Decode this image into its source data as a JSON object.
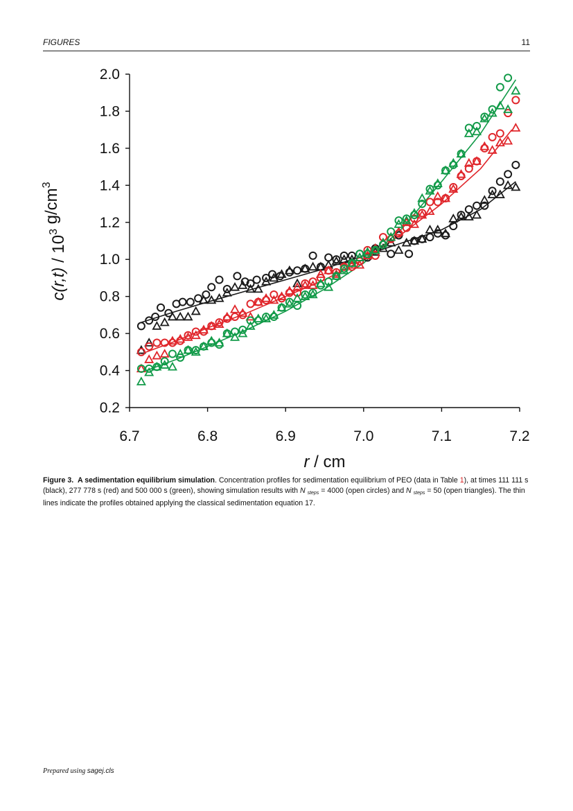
{
  "header": {
    "section": "FIGURES",
    "page": "11"
  },
  "footer": {
    "prefix": "Prepared using",
    "cls": "sagej.cls"
  },
  "caption": {
    "label": "Figure 3.",
    "title": "A sedimentation equilibrium simulation",
    "part1": ". Concentration profiles for sedimentation equilibrium of PEO (data in Table ",
    "table_ref": "1",
    "part2": "), at times 111 111 s (black), 277 778 s (red) and 500 000 s (green), showing simulation results with ",
    "n1": "N",
    "sub1": "steps",
    "part3": " = 4000 (open circles) and ",
    "n2": "N",
    "sub2": "steps",
    "part4": " = 50 (open triangles). The thin lines indicate the profiles obtained applying the classical sedimentation equation 17."
  },
  "colors": {
    "black": "#1a1a1a",
    "red": "#e0262b",
    "green": "#119a48"
  },
  "chart_data": {
    "type": "scatter",
    "title": "",
    "xlabel": "r / cm",
    "ylabel": "c(r,t) / 10^3 g/cm^3",
    "xlim": [
      6.7,
      7.2
    ],
    "ylim": [
      0.2,
      2.0
    ],
    "xticks": [
      "6.7",
      "6.8",
      "6.9",
      "7.0",
      "7.1",
      "7.2"
    ],
    "yticks": [
      "0.2",
      "0.4",
      "0.6",
      "0.8",
      "1.0",
      "1.2",
      "1.4",
      "1.6",
      "1.8",
      "2.0"
    ],
    "grid": false,
    "series": [
      {
        "color": "black",
        "marker": "circle",
        "x": [
          6.715,
          6.725,
          6.733,
          6.74,
          6.75,
          6.76,
          6.768,
          6.778,
          6.788,
          6.798,
          6.805,
          6.815,
          6.825,
          6.838,
          6.848,
          6.855,
          6.863,
          6.875,
          6.883,
          6.893,
          6.905,
          6.915,
          6.925,
          6.935,
          6.945,
          6.955,
          6.965,
          6.975,
          6.985,
          6.995,
          7.005,
          7.015,
          7.025,
          7.035,
          7.045,
          7.058,
          7.065,
          7.075,
          7.085,
          7.095,
          7.105,
          7.115,
          7.125,
          7.135,
          7.145,
          7.155,
          7.165,
          7.175,
          7.185,
          7.195
        ],
        "y": [
          0.64,
          0.67,
          0.69,
          0.74,
          0.71,
          0.76,
          0.77,
          0.77,
          0.79,
          0.81,
          0.85,
          0.89,
          0.84,
          0.91,
          0.88,
          0.87,
          0.89,
          0.9,
          0.92,
          0.91,
          0.93,
          0.94,
          0.95,
          1.02,
          0.96,
          1.01,
          1.0,
          1.02,
          1.02,
          1.03,
          1.01,
          1.06,
          1.08,
          1.03,
          1.13,
          1.03,
          1.1,
          1.11,
          1.12,
          1.14,
          1.13,
          1.18,
          1.24,
          1.27,
          1.29,
          1.29,
          1.37,
          1.42,
          1.46,
          1.51
        ]
      },
      {
        "color": "black",
        "marker": "triangle",
        "x": [
          6.715,
          6.725,
          6.735,
          6.745,
          6.755,
          6.765,
          6.775,
          6.785,
          6.795,
          6.805,
          6.815,
          6.825,
          6.835,
          6.845,
          6.855,
          6.865,
          6.875,
          6.885,
          6.895,
          6.905,
          6.915,
          6.925,
          6.935,
          6.945,
          6.955,
          6.965,
          6.975,
          6.985,
          6.995,
          7.005,
          7.015,
          7.025,
          7.035,
          7.045,
          7.055,
          7.065,
          7.075,
          7.085,
          7.095,
          7.105,
          7.115,
          7.125,
          7.135,
          7.145,
          7.155,
          7.165,
          7.175,
          7.185,
          7.195
        ],
        "y": [
          0.51,
          0.55,
          0.64,
          0.66,
          0.69,
          0.69,
          0.69,
          0.72,
          0.78,
          0.78,
          0.79,
          0.82,
          0.85,
          0.86,
          0.84,
          0.84,
          0.88,
          0.9,
          0.92,
          0.94,
          0.87,
          0.95,
          0.96,
          0.96,
          0.97,
          0.99,
          1.0,
          1.0,
          1.01,
          1.02,
          1.04,
          1.06,
          1.09,
          1.05,
          1.09,
          1.1,
          1.11,
          1.16,
          1.16,
          1.14,
          1.22,
          1.23,
          1.23,
          1.24,
          1.32,
          1.35,
          1.35,
          1.4,
          1.39
        ]
      },
      {
        "color": "red",
        "marker": "circle",
        "x": [
          6.715,
          6.725,
          6.735,
          6.745,
          6.755,
          6.765,
          6.775,
          6.785,
          6.795,
          6.805,
          6.815,
          6.825,
          6.835,
          6.845,
          6.855,
          6.865,
          6.875,
          6.885,
          6.895,
          6.905,
          6.915,
          6.925,
          6.935,
          6.945,
          6.955,
          6.965,
          6.975,
          6.985,
          6.995,
          7.005,
          7.015,
          7.025,
          7.035,
          7.045,
          7.055,
          7.065,
          7.075,
          7.085,
          7.095,
          7.105,
          7.115,
          7.125,
          7.135,
          7.145,
          7.155,
          7.165,
          7.175,
          7.185,
          7.195
        ],
        "y": [
          0.5,
          0.53,
          0.55,
          0.55,
          0.55,
          0.56,
          0.59,
          0.61,
          0.61,
          0.64,
          0.66,
          0.68,
          0.69,
          0.7,
          0.76,
          0.77,
          0.78,
          0.81,
          0.79,
          0.82,
          0.82,
          0.87,
          0.88,
          0.9,
          0.94,
          0.93,
          0.96,
          0.96,
          0.99,
          1.05,
          1.02,
          1.12,
          1.11,
          1.14,
          1.17,
          1.22,
          1.25,
          1.31,
          1.31,
          1.33,
          1.39,
          1.45,
          1.49,
          1.53,
          1.6,
          1.66,
          1.68,
          1.79,
          1.86
        ]
      },
      {
        "color": "red",
        "marker": "triangle",
        "x": [
          6.715,
          6.725,
          6.735,
          6.745,
          6.755,
          6.765,
          6.775,
          6.785,
          6.795,
          6.805,
          6.815,
          6.825,
          6.835,
          6.845,
          6.855,
          6.865,
          6.875,
          6.885,
          6.895,
          6.905,
          6.915,
          6.925,
          6.935,
          6.945,
          6.955,
          6.965,
          6.975,
          6.985,
          6.995,
          7.005,
          7.015,
          7.025,
          7.035,
          7.045,
          7.055,
          7.065,
          7.075,
          7.085,
          7.095,
          7.105,
          7.115,
          7.125,
          7.135,
          7.145,
          7.155,
          7.165,
          7.175,
          7.185,
          7.195
        ],
        "y": [
          0.41,
          0.46,
          0.48,
          0.49,
          0.56,
          0.57,
          0.58,
          0.59,
          0.62,
          0.64,
          0.65,
          0.69,
          0.73,
          0.71,
          0.69,
          0.77,
          0.79,
          0.78,
          0.8,
          0.83,
          0.85,
          0.86,
          0.86,
          0.92,
          0.94,
          0.92,
          0.96,
          0.97,
          0.97,
          1.02,
          1.06,
          1.09,
          1.12,
          1.15,
          1.2,
          1.19,
          1.24,
          1.26,
          1.34,
          1.33,
          1.38,
          1.46,
          1.52,
          1.53,
          1.61,
          1.59,
          1.63,
          1.64,
          1.71
        ]
      },
      {
        "color": "green",
        "marker": "circle",
        "x": [
          6.715,
          6.725,
          6.735,
          6.745,
          6.755,
          6.765,
          6.775,
          6.785,
          6.795,
          6.805,
          6.815,
          6.825,
          6.835,
          6.845,
          6.855,
          6.865,
          6.875,
          6.885,
          6.895,
          6.905,
          6.915,
          6.925,
          6.935,
          6.945,
          6.955,
          6.965,
          6.975,
          6.985,
          6.995,
          7.005,
          7.015,
          7.025,
          7.035,
          7.045,
          7.055,
          7.065,
          7.075,
          7.085,
          7.095,
          7.105,
          7.115,
          7.125,
          7.135,
          7.145,
          7.155,
          7.165,
          7.175,
          7.185
        ],
        "y": [
          0.41,
          0.41,
          0.42,
          0.45,
          0.49,
          0.47,
          0.51,
          0.51,
          0.53,
          0.55,
          0.54,
          0.6,
          0.61,
          0.62,
          0.67,
          0.67,
          0.69,
          0.69,
          0.74,
          0.77,
          0.75,
          0.81,
          0.82,
          0.86,
          0.88,
          0.91,
          0.95,
          0.98,
          1.03,
          1.03,
          1.05,
          1.08,
          1.15,
          1.21,
          1.22,
          1.24,
          1.3,
          1.38,
          1.4,
          1.48,
          1.51,
          1.57,
          1.71,
          1.72,
          1.77,
          1.81,
          1.93,
          1.98
        ]
      },
      {
        "color": "green",
        "marker": "triangle",
        "x": [
          6.715,
          6.725,
          6.735,
          6.745,
          6.755,
          6.765,
          6.775,
          6.785,
          6.795,
          6.805,
          6.815,
          6.825,
          6.835,
          6.845,
          6.855,
          6.865,
          6.875,
          6.885,
          6.895,
          6.905,
          6.915,
          6.925,
          6.935,
          6.945,
          6.955,
          6.965,
          6.975,
          6.985,
          6.995,
          7.005,
          7.015,
          7.025,
          7.035,
          7.045,
          7.055,
          7.065,
          7.075,
          7.085,
          7.095,
          7.105,
          7.115,
          7.125,
          7.135,
          7.145,
          7.155,
          7.165,
          7.175,
          7.185,
          7.195
        ],
        "y": [
          0.34,
          0.39,
          0.42,
          0.43,
          0.42,
          0.49,
          0.51,
          0.5,
          0.53,
          0.56,
          0.55,
          0.6,
          0.58,
          0.6,
          0.64,
          0.68,
          0.68,
          0.7,
          0.74,
          0.76,
          0.79,
          0.8,
          0.81,
          0.87,
          0.85,
          0.91,
          0.94,
          0.98,
          1.01,
          1.04,
          1.05,
          1.09,
          1.12,
          1.19,
          1.21,
          1.25,
          1.33,
          1.37,
          1.41,
          1.48,
          1.52,
          1.57,
          1.68,
          1.69,
          1.76,
          1.79,
          1.83,
          1.81,
          1.91
        ]
      }
    ],
    "fit_lines": [
      {
        "color": "black",
        "x": [
          6.715,
          6.76,
          6.8,
          6.85,
          6.9,
          6.95,
          7.0,
          7.05,
          7.1,
          7.15,
          7.195
        ],
        "y": [
          0.66,
          0.72,
          0.77,
          0.83,
          0.89,
          0.95,
          1.02,
          1.09,
          1.16,
          1.27,
          1.42
        ]
      },
      {
        "color": "red",
        "x": [
          6.715,
          6.76,
          6.8,
          6.85,
          6.9,
          6.95,
          7.0,
          7.05,
          7.1,
          7.15,
          7.19
        ],
        "y": [
          0.49,
          0.56,
          0.63,
          0.71,
          0.8,
          0.89,
          1.0,
          1.14,
          1.3,
          1.49,
          1.7
        ]
      },
      {
        "color": "green",
        "x": [
          6.715,
          6.76,
          6.8,
          6.85,
          6.9,
          6.95,
          7.0,
          7.05,
          7.1,
          7.15,
          7.195
        ],
        "y": [
          0.39,
          0.46,
          0.53,
          0.62,
          0.72,
          0.84,
          0.98,
          1.17,
          1.42,
          1.68,
          1.97
        ]
      }
    ]
  }
}
